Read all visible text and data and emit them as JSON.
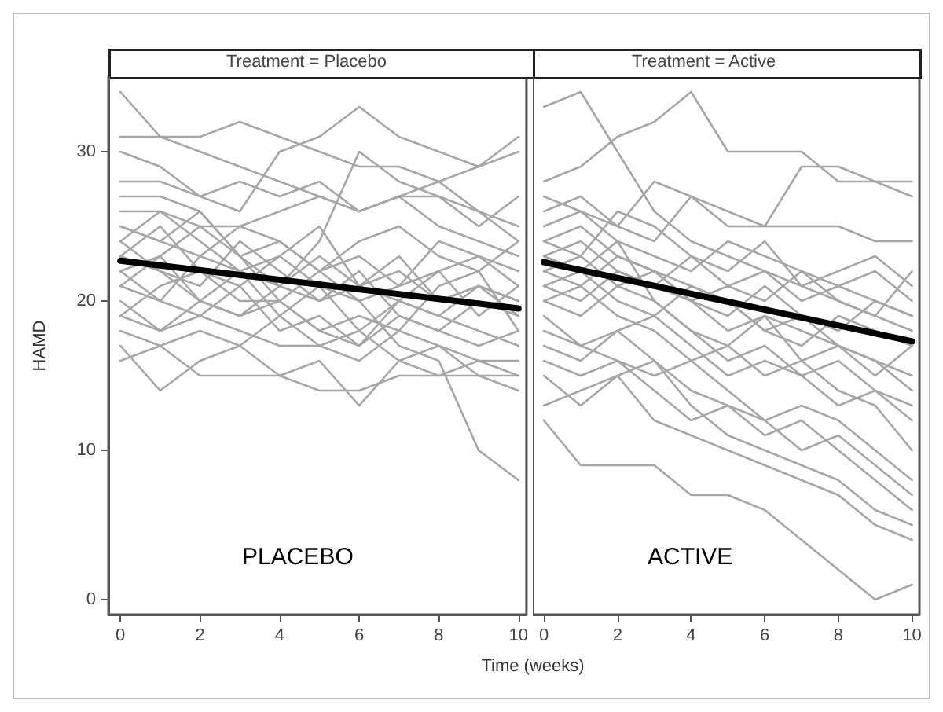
{
  "chart_data": [
    {
      "type": "line",
      "title": "Treatment = Placebo",
      "ylabel": "HAMD",
      "xlabel": "Time (weeks)",
      "annotations": [
        "PLACEBO"
      ],
      "x": [
        0,
        1,
        2,
        3,
        4,
        5,
        6,
        7,
        8,
        9,
        10
      ],
      "xlim": [
        -0.3,
        10.2
      ],
      "xticks": [
        0,
        2,
        4,
        6,
        8,
        10
      ],
      "ylim": [
        -1,
        35
      ],
      "yticks": [
        0,
        10,
        20,
        30
      ],
      "grid": false,
      "marker": "none",
      "line_style": "solid",
      "series": [
        {
          "color": "#a6a6a6",
          "values": [
            34,
            31,
            30,
            29,
            28,
            27,
            26,
            27,
            25,
            24,
            23
          ]
        },
        {
          "color": "#a6a6a6",
          "values": [
            31,
            31,
            31,
            32,
            31,
            30,
            29,
            29,
            28,
            26,
            25
          ]
        },
        {
          "color": "#a6a6a6",
          "values": [
            28,
            28,
            27,
            26,
            30,
            31,
            33,
            31,
            30,
            29,
            31
          ]
        },
        {
          "color": "#a6a6a6",
          "values": [
            27,
            27,
            26,
            23,
            21,
            24,
            30,
            28,
            27,
            25,
            27
          ]
        },
        {
          "color": "#a6a6a6",
          "values": [
            26,
            26,
            25,
            25,
            26,
            27,
            26,
            27,
            27,
            26,
            24
          ]
        },
        {
          "color": "#a6a6a6",
          "values": [
            25,
            24,
            23,
            25,
            24,
            22,
            23,
            21,
            22,
            23,
            22
          ]
        },
        {
          "color": "#a6a6a6",
          "values": [
            23,
            22,
            21,
            24,
            22,
            20,
            21,
            22,
            20,
            21,
            20
          ]
        },
        {
          "color": "#a6a6a6",
          "values": [
            22,
            20,
            23,
            22,
            19,
            21,
            18,
            20,
            22,
            19,
            21
          ]
        },
        {
          "color": "#a6a6a6",
          "values": [
            21,
            23,
            20,
            19,
            21,
            20,
            22,
            19,
            18,
            20,
            19
          ]
        },
        {
          "color": "#a6a6a6",
          "values": [
            20,
            18,
            19,
            21,
            18,
            19,
            17,
            20,
            19,
            18,
            17
          ]
        },
        {
          "color": "#a6a6a6",
          "values": [
            19,
            21,
            22,
            20,
            20,
            18,
            19,
            18,
            21,
            22,
            18
          ]
        },
        {
          "color": "#a6a6a6",
          "values": [
            18,
            17,
            18,
            17,
            19,
            17,
            16,
            18,
            17,
            16,
            16
          ]
        },
        {
          "color": "#a6a6a6",
          "values": [
            17,
            14,
            16,
            17,
            15,
            16,
            13,
            16,
            17,
            15,
            14
          ]
        },
        {
          "color": "#a6a6a6",
          "values": [
            16,
            17,
            15,
            15,
            15,
            14,
            14,
            15,
            15,
            15,
            15
          ]
        },
        {
          "color": "#a6a6a6",
          "values": [
            24,
            26,
            24,
            22,
            23,
            25,
            21,
            23,
            20,
            21,
            19
          ]
        },
        {
          "color": "#a6a6a6",
          "values": [
            22,
            23,
            25,
            23,
            20,
            22,
            20,
            17,
            16,
            10,
            8
          ]
        },
        {
          "color": "#a6a6a6",
          "values": [
            30,
            29,
            27,
            28,
            27,
            28,
            26,
            27,
            28,
            29,
            30
          ]
        },
        {
          "color": "#a6a6a6",
          "values": [
            24,
            22,
            20,
            19,
            20,
            18,
            17,
            19,
            18,
            17,
            18
          ]
        },
        {
          "color": "#a6a6a6",
          "values": [
            21,
            20,
            19,
            18,
            17,
            17,
            18,
            16,
            15,
            16,
            15
          ]
        },
        {
          "color": "#a6a6a6",
          "values": [
            25,
            24,
            26,
            23,
            24,
            22,
            24,
            25,
            23,
            22,
            24
          ]
        },
        {
          "color": "#a6a6a6",
          "values": [
            19,
            18,
            20,
            22,
            21,
            23,
            21,
            20,
            19,
            21,
            20
          ]
        },
        {
          "color": "#a6a6a6",
          "values": [
            23,
            25,
            22,
            21,
            23,
            21,
            20,
            21,
            24,
            23,
            21
          ]
        },
        {
          "color": "#000000",
          "values": [
            22.7,
            null,
            null,
            null,
            null,
            null,
            null,
            null,
            null,
            null,
            19.5
          ]
        }
      ]
    },
    {
      "type": "line",
      "title": "Treatment = Active",
      "annotations": [
        "ACTIVE"
      ],
      "x": [
        0,
        1,
        2,
        3,
        4,
        5,
        6,
        7,
        8,
        9,
        10
      ],
      "xlim": [
        -0.3,
        10.2
      ],
      "xticks": [
        0,
        2,
        4,
        6,
        8,
        10
      ],
      "ylim": [
        -1,
        35
      ],
      "tick_labels": "x",
      "grid": false,
      "marker": "none",
      "line_style": "solid",
      "series": [
        {
          "color": "#a6a6a6",
          "values": [
            33,
            34,
            30,
            26,
            24,
            23,
            22,
            21,
            20,
            19,
            18
          ]
        },
        {
          "color": "#a6a6a6",
          "values": [
            28,
            29,
            31,
            32,
            34,
            30,
            30,
            30,
            28,
            28,
            27
          ]
        },
        {
          "color": "#a6a6a6",
          "values": [
            26,
            27,
            25,
            28,
            27,
            25,
            25,
            29,
            29,
            28,
            28
          ]
        },
        {
          "color": "#a6a6a6",
          "values": [
            27,
            26,
            25,
            24,
            27,
            26,
            25,
            25,
            25,
            24,
            24
          ]
        },
        {
          "color": "#a6a6a6",
          "values": [
            25,
            26,
            24,
            23,
            22,
            24,
            23,
            22,
            20,
            19,
            22
          ]
        },
        {
          "color": "#a6a6a6",
          "values": [
            24,
            23,
            26,
            25,
            23,
            22,
            24,
            21,
            22,
            23,
            21
          ]
        },
        {
          "color": "#a6a6a6",
          "values": [
            23,
            24,
            22,
            21,
            23,
            21,
            20,
            22,
            21,
            20,
            19
          ]
        },
        {
          "color": "#a6a6a6",
          "values": [
            22,
            21,
            23,
            22,
            20,
            19,
            21,
            19,
            18,
            20,
            19
          ]
        },
        {
          "color": "#a6a6a6",
          "values": [
            21,
            22,
            20,
            19,
            21,
            20,
            18,
            17,
            19,
            18,
            17
          ]
        },
        {
          "color": "#a6a6a6",
          "values": [
            20,
            19,
            21,
            20,
            18,
            17,
            19,
            16,
            17,
            16,
            14
          ]
        },
        {
          "color": "#a6a6a6",
          "values": [
            19,
            17,
            18,
            19,
            17,
            15,
            16,
            15,
            13,
            14,
            13
          ]
        },
        {
          "color": "#a6a6a6",
          "values": [
            18,
            17,
            16,
            15,
            16,
            14,
            12,
            13,
            12,
            10,
            8
          ]
        },
        {
          "color": "#a6a6a6",
          "values": [
            17,
            16,
            18,
            16,
            14,
            13,
            12,
            10,
            11,
            9,
            7
          ]
        },
        {
          "color": "#a6a6a6",
          "values": [
            16,
            15,
            16,
            14,
            12,
            13,
            11,
            12,
            10,
            8,
            6
          ]
        },
        {
          "color": "#a6a6a6",
          "values": [
            15,
            13,
            15,
            16,
            13,
            11,
            10,
            9,
            8,
            6,
            5
          ]
        },
        {
          "color": "#a6a6a6",
          "values": [
            13,
            14,
            15,
            12,
            11,
            10,
            9,
            8,
            7,
            5,
            4
          ]
        },
        {
          "color": "#a6a6a6",
          "values": [
            12,
            9,
            9,
            9,
            7,
            7,
            6,
            4,
            2,
            0,
            1
          ]
        },
        {
          "color": "#a6a6a6",
          "values": [
            23,
            22,
            24,
            20,
            18,
            16,
            17,
            15,
            16,
            14,
            12
          ]
        },
        {
          "color": "#a6a6a6",
          "values": [
            24,
            25,
            23,
            22,
            21,
            20,
            18,
            19,
            17,
            16,
            15
          ]
        },
        {
          "color": "#a6a6a6",
          "values": [
            22,
            23,
            21,
            22,
            20,
            21,
            22,
            20,
            21,
            22,
            20
          ]
        },
        {
          "color": "#a6a6a6",
          "values": [
            20,
            21,
            19,
            18,
            16,
            17,
            15,
            16,
            14,
            13,
            10
          ]
        },
        {
          "color": "#a6a6a6",
          "values": [
            21,
            20,
            22,
            21,
            20,
            18,
            19,
            18,
            17,
            15,
            17
          ]
        },
        {
          "color": "#000000",
          "values": [
            22.6,
            null,
            null,
            null,
            null,
            null,
            null,
            null,
            null,
            null,
            17.3
          ]
        }
      ]
    }
  ]
}
